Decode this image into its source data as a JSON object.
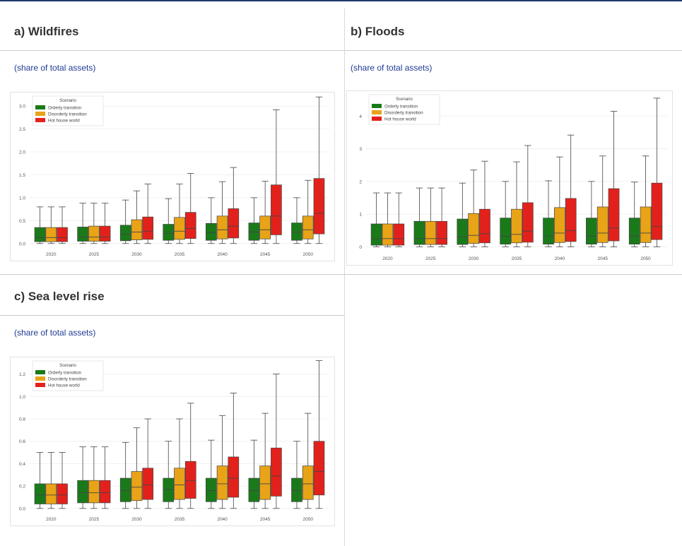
{
  "panels": [
    {
      "title": "a) Wildfires",
      "subtitle": "(share of total assets)"
    },
    {
      "title": "b) Floods",
      "subtitle": "(share of total assets)"
    },
    {
      "title": "c) Sea level rise",
      "subtitle": "(share of total assets)"
    }
  ],
  "colors": {
    "orderly": "#1a7a1a",
    "disorderly": "#e8a317",
    "hothouse": "#e3211c",
    "accent": "#1f3a6e"
  },
  "chart_data": [
    {
      "type": "box",
      "title": "",
      "legend_title": "Scenario",
      "legend_position": "top-left",
      "grid": true,
      "categories": [
        "2020",
        "2025",
        "2030",
        "2035",
        "2040",
        "2045",
        "2050"
      ],
      "ylim": [
        -0.05,
        3.25
      ],
      "yticks": [
        "0.0",
        "0.5",
        "1.0",
        "1.5",
        "2.0",
        "2.5",
        "3.0"
      ],
      "series": [
        {
          "name": "Orderly transition",
          "color": "#1a7a1a",
          "boxes": [
            [
              0.0,
              0.04,
              0.13,
              0.35,
              0.8
            ],
            [
              0.0,
              0.05,
              0.14,
              0.36,
              0.88
            ],
            [
              0.0,
              0.06,
              0.2,
              0.4,
              0.95
            ],
            [
              0.0,
              0.07,
              0.22,
              0.42,
              0.98
            ],
            [
              0.0,
              0.07,
              0.24,
              0.44,
              1.0
            ],
            [
              0.0,
              0.07,
              0.25,
              0.45,
              1.0
            ],
            [
              0.0,
              0.07,
              0.25,
              0.45,
              1.0
            ]
          ]
        },
        {
          "name": "Disorderly transition",
          "color": "#e8a317",
          "boxes": [
            [
              0.0,
              0.04,
              0.13,
              0.35,
              0.8
            ],
            [
              0.0,
              0.05,
              0.14,
              0.38,
              0.88
            ],
            [
              0.0,
              0.08,
              0.25,
              0.52,
              1.15
            ],
            [
              0.0,
              0.09,
              0.27,
              0.57,
              1.3
            ],
            [
              0.0,
              0.1,
              0.3,
              0.6,
              1.35
            ],
            [
              0.0,
              0.1,
              0.3,
              0.6,
              1.36
            ],
            [
              0.0,
              0.1,
              0.3,
              0.6,
              1.38
            ]
          ]
        },
        {
          "name": "Hot house world",
          "color": "#e3211c",
          "boxes": [
            [
              0.0,
              0.04,
              0.13,
              0.35,
              0.8
            ],
            [
              0.0,
              0.05,
              0.14,
              0.38,
              0.88
            ],
            [
              0.0,
              0.09,
              0.27,
              0.58,
              1.3
            ],
            [
              0.0,
              0.11,
              0.33,
              0.68,
              1.53
            ],
            [
              0.0,
              0.12,
              0.38,
              0.76,
              1.66
            ],
            [
              0.0,
              0.19,
              0.6,
              1.28,
              2.92
            ],
            [
              0.0,
              0.21,
              0.66,
              1.42,
              3.2
            ]
          ]
        }
      ]
    },
    {
      "type": "box",
      "title": "",
      "legend_title": "Scenario",
      "legend_position": "top-left",
      "grid": true,
      "categories": [
        "2020",
        "2025",
        "2030",
        "2035",
        "2040",
        "2045",
        "2050"
      ],
      "ylim": [
        -0.1,
        4.7
      ],
      "yticks": [
        "0",
        "1",
        "2",
        "3",
        "4"
      ],
      "series": [
        {
          "name": "Orderly transition",
          "color": "#1a7a1a",
          "boxes": [
            [
              0.0,
              0.05,
              0.25,
              0.7,
              1.65
            ],
            [
              0.0,
              0.07,
              0.25,
              0.78,
              1.8
            ],
            [
              0.0,
              0.07,
              0.3,
              0.85,
              1.95
            ],
            [
              0.0,
              0.08,
              0.32,
              0.88,
              2.0
            ],
            [
              0.0,
              0.08,
              0.33,
              0.88,
              2.02
            ],
            [
              0.0,
              0.08,
              0.33,
              0.88,
              2.0
            ],
            [
              0.0,
              0.08,
              0.33,
              0.88,
              1.98
            ]
          ]
        },
        {
          "name": "Disorderly transition",
          "color": "#e8a317",
          "boxes": [
            [
              0.0,
              0.05,
              0.25,
              0.7,
              1.65
            ],
            [
              0.0,
              0.07,
              0.25,
              0.78,
              1.8
            ],
            [
              0.0,
              0.1,
              0.35,
              1.02,
              2.35
            ],
            [
              0.0,
              0.12,
              0.38,
              1.15,
              2.6
            ],
            [
              0.0,
              0.13,
              0.42,
              1.2,
              2.75
            ],
            [
              0.0,
              0.13,
              0.42,
              1.22,
              2.78
            ],
            [
              0.0,
              0.13,
              0.42,
              1.22,
              2.78
            ]
          ]
        },
        {
          "name": "Hot house world",
          "color": "#e3211c",
          "boxes": [
            [
              0.0,
              0.05,
              0.25,
              0.7,
              1.65
            ],
            [
              0.0,
              0.07,
              0.25,
              0.78,
              1.8
            ],
            [
              0.0,
              0.12,
              0.4,
              1.15,
              2.62
            ],
            [
              0.0,
              0.14,
              0.48,
              1.35,
              3.1
            ],
            [
              0.0,
              0.16,
              0.5,
              1.48,
              3.42
            ],
            [
              0.0,
              0.18,
              0.57,
              1.78,
              4.15
            ],
            [
              0.0,
              0.22,
              0.62,
              1.95,
              4.55
            ]
          ]
        }
      ]
    },
    {
      "type": "box",
      "title": "",
      "legend_title": "Scenario",
      "legend_position": "top-left",
      "grid": true,
      "categories": [
        "2020",
        "2025",
        "2030",
        "2035",
        "2040",
        "2045",
        "2050"
      ],
      "ylim": [
        -0.02,
        1.33
      ],
      "yticks": [
        "0.0",
        "0.2",
        "0.4",
        "0.6",
        "0.8",
        "1.0",
        "1.2"
      ],
      "series": [
        {
          "name": "Orderly transition",
          "color": "#1a7a1a",
          "boxes": [
            [
              0.0,
              0.04,
              0.12,
              0.22,
              0.5
            ],
            [
              0.0,
              0.05,
              0.14,
              0.25,
              0.55
            ],
            [
              0.0,
              0.06,
              0.16,
              0.27,
              0.59
            ],
            [
              0.0,
              0.06,
              0.17,
              0.27,
              0.6
            ],
            [
              0.0,
              0.06,
              0.16,
              0.27,
              0.61
            ],
            [
              0.0,
              0.06,
              0.16,
              0.27,
              0.61
            ],
            [
              0.0,
              0.06,
              0.16,
              0.27,
              0.6
            ]
          ]
        },
        {
          "name": "Disorderly transition",
          "color": "#e8a317",
          "boxes": [
            [
              0.0,
              0.04,
              0.12,
              0.22,
              0.5
            ],
            [
              0.0,
              0.05,
              0.14,
              0.25,
              0.55
            ],
            [
              0.0,
              0.07,
              0.19,
              0.33,
              0.72
            ],
            [
              0.0,
              0.08,
              0.21,
              0.36,
              0.8
            ],
            [
              0.0,
              0.08,
              0.22,
              0.38,
              0.83
            ],
            [
              0.0,
              0.08,
              0.22,
              0.38,
              0.85
            ],
            [
              0.0,
              0.08,
              0.22,
              0.38,
              0.85
            ]
          ]
        },
        {
          "name": "Hot house world",
          "color": "#e3211c",
          "boxes": [
            [
              0.0,
              0.04,
              0.12,
              0.22,
              0.5
            ],
            [
              0.0,
              0.05,
              0.14,
              0.25,
              0.55
            ],
            [
              0.0,
              0.08,
              0.21,
              0.36,
              0.8
            ],
            [
              0.0,
              0.09,
              0.25,
              0.42,
              0.94
            ],
            [
              0.0,
              0.1,
              0.27,
              0.46,
              1.03
            ],
            [
              0.0,
              0.11,
              0.29,
              0.54,
              1.2
            ],
            [
              0.0,
              0.12,
              0.33,
              0.6,
              1.32
            ]
          ]
        }
      ]
    }
  ]
}
